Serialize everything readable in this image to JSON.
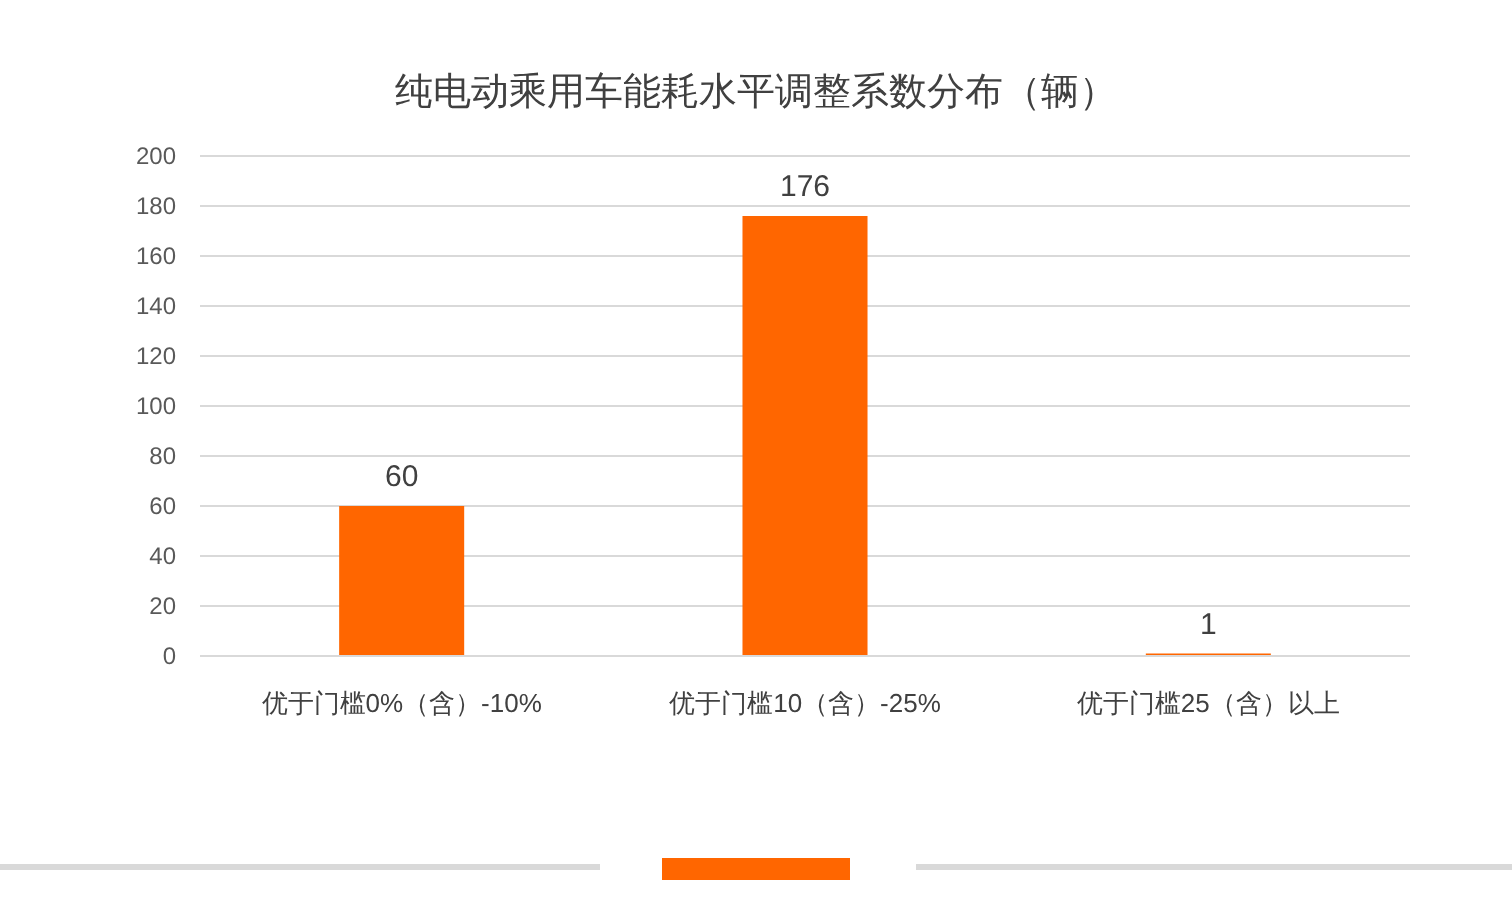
{
  "chart_data": {
    "type": "bar",
    "title": "纯电动乘用车能耗水平调整系数分布（辆）",
    "categories": [
      "优于门槛0%（含）-10%",
      "优于门槛10（含）-25%",
      "优于门槛25（含）以上"
    ],
    "values": [
      60,
      176,
      1
    ],
    "color": "#ff6600",
    "ylim": [
      0,
      200
    ],
    "yticks": [
      0,
      20,
      40,
      60,
      80,
      100,
      120,
      140,
      160,
      180,
      200
    ],
    "grid": "y",
    "data_labels": true
  }
}
